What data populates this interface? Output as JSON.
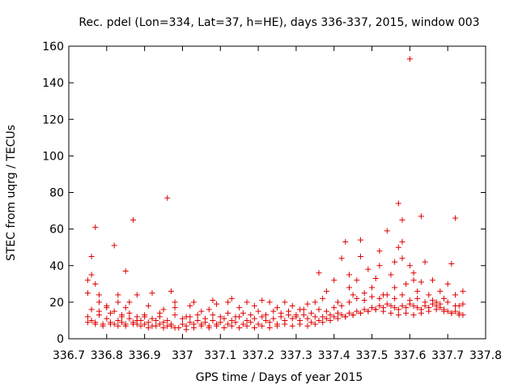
{
  "chart_data": {
    "type": "scatter",
    "title": "Rec. pdel (Lon=334, Lat=37, h=HE), days 336-337, 2015, window 003",
    "xlabel": "GPS time / Days of year 2015",
    "ylabel": "STEC from uqrg / TECUs",
    "xlim": [
      336.7,
      337.8
    ],
    "ylim": [
      0,
      160
    ],
    "x_ticks": [
      336.7,
      336.8,
      336.9,
      337.0,
      337.1,
      337.2,
      337.3,
      337.4,
      337.5,
      337.6,
      337.7,
      337.8
    ],
    "x_tick_labels": [
      "336.7",
      "336.8",
      "336.9",
      "337",
      "337.1",
      "337.2",
      "337.3",
      "337.4",
      "337.5",
      "337.6",
      "337.7",
      "337.8"
    ],
    "y_ticks": [
      0,
      20,
      40,
      60,
      80,
      100,
      120,
      140,
      160
    ],
    "y_tick_labels": [
      "0",
      "20",
      "40",
      "60",
      "80",
      "100",
      "120",
      "140",
      "160"
    ],
    "grid": false,
    "marker": "plus",
    "color": "#e00000",
    "series": [
      {
        "points": [
          [
            336.75,
            32
          ],
          [
            336.75,
            25
          ],
          [
            336.76,
            35
          ],
          [
            336.76,
            45
          ],
          [
            336.77,
            30
          ],
          [
            336.77,
            61
          ],
          [
            336.78,
            20
          ],
          [
            336.78,
            24
          ],
          [
            336.8,
            18
          ],
          [
            336.81,
            14
          ],
          [
            336.82,
            51
          ],
          [
            336.83,
            20
          ],
          [
            336.83,
            24
          ],
          [
            336.84,
            13
          ],
          [
            336.85,
            37
          ],
          [
            336.85,
            17
          ],
          [
            336.86,
            20
          ],
          [
            336.87,
            65
          ],
          [
            336.88,
            24
          ],
          [
            336.88,
            12
          ],
          [
            336.9,
            12
          ],
          [
            336.91,
            18
          ],
          [
            336.92,
            25
          ],
          [
            336.94,
            14
          ],
          [
            336.95,
            16
          ],
          [
            336.96,
            77
          ],
          [
            336.97,
            26
          ],
          [
            336.98,
            20
          ],
          [
            336.98,
            17
          ],
          [
            337.01,
            12
          ],
          [
            337.02,
            18
          ],
          [
            337.03,
            20
          ],
          [
            337.05,
            15
          ],
          [
            337.07,
            16
          ],
          [
            337.08,
            21
          ],
          [
            337.09,
            19
          ],
          [
            337.12,
            20
          ],
          [
            337.13,
            22
          ],
          [
            337.15,
            17
          ],
          [
            337.17,
            20
          ],
          [
            337.19,
            18
          ],
          [
            337.21,
            21
          ],
          [
            337.23,
            20
          ],
          [
            337.25,
            17
          ],
          [
            337.27,
            20
          ],
          [
            337.29,
            18
          ],
          [
            337.31,
            16
          ],
          [
            337.33,
            19
          ],
          [
            337.35,
            20
          ],
          [
            337.36,
            36
          ],
          [
            337.37,
            22
          ],
          [
            337.38,
            26
          ],
          [
            337.4,
            32
          ],
          [
            337.41,
            20
          ],
          [
            337.42,
            44
          ],
          [
            337.43,
            53
          ],
          [
            337.44,
            35
          ],
          [
            337.44,
            28
          ],
          [
            337.45,
            24
          ],
          [
            337.46,
            32
          ],
          [
            337.47,
            54
          ],
          [
            337.47,
            45
          ],
          [
            337.48,
            25
          ],
          [
            337.49,
            38
          ],
          [
            337.5,
            28
          ],
          [
            337.51,
            33
          ],
          [
            337.52,
            40
          ],
          [
            337.52,
            48
          ],
          [
            337.53,
            24
          ],
          [
            337.54,
            59
          ],
          [
            337.55,
            35
          ],
          [
            337.56,
            42
          ],
          [
            337.56,
            28
          ],
          [
            337.57,
            74
          ],
          [
            337.57,
            50
          ],
          [
            337.58,
            44
          ],
          [
            337.58,
            65
          ],
          [
            337.58,
            53
          ],
          [
            337.59,
            30
          ],
          [
            337.6,
            153
          ],
          [
            337.6,
            40
          ],
          [
            337.61,
            36
          ],
          [
            337.61,
            32
          ],
          [
            337.62,
            26
          ],
          [
            337.63,
            67
          ],
          [
            337.63,
            31
          ],
          [
            337.64,
            42
          ],
          [
            337.65,
            24
          ],
          [
            337.66,
            32
          ],
          [
            337.67,
            20
          ],
          [
            337.68,
            26
          ],
          [
            337.69,
            22
          ],
          [
            337.7,
            30
          ],
          [
            337.71,
            41
          ],
          [
            337.72,
            24
          ],
          [
            337.72,
            66
          ],
          [
            337.73,
            18
          ],
          [
            337.74,
            26
          ],
          [
            336.75,
            12
          ],
          [
            336.76,
            10
          ],
          [
            336.77,
            9
          ],
          [
            336.78,
            13
          ],
          [
            336.79,
            8
          ],
          [
            336.8,
            11
          ],
          [
            336.81,
            9
          ],
          [
            336.82,
            8
          ],
          [
            336.83,
            10
          ],
          [
            336.84,
            9
          ],
          [
            336.85,
            8
          ],
          [
            336.86,
            11
          ],
          [
            336.87,
            9
          ],
          [
            336.88,
            8
          ],
          [
            336.89,
            10
          ],
          [
            336.9,
            8
          ],
          [
            336.91,
            9
          ],
          [
            336.92,
            7
          ],
          [
            336.93,
            10
          ],
          [
            336.94,
            8
          ],
          [
            336.95,
            9
          ],
          [
            336.96,
            7
          ],
          [
            336.97,
            8
          ],
          [
            336.98,
            6
          ],
          [
            337.0,
            8
          ],
          [
            337.01,
            7
          ],
          [
            337.02,
            9
          ],
          [
            337.03,
            8
          ],
          [
            337.04,
            10
          ],
          [
            337.05,
            8
          ],
          [
            337.06,
            9
          ],
          [
            337.07,
            7
          ],
          [
            337.08,
            10
          ],
          [
            337.09,
            8
          ],
          [
            337.1,
            9
          ],
          [
            337.11,
            11
          ],
          [
            337.12,
            8
          ],
          [
            337.13,
            10
          ],
          [
            337.14,
            9
          ],
          [
            337.15,
            12
          ],
          [
            337.16,
            8
          ],
          [
            337.17,
            10
          ],
          [
            337.18,
            9
          ],
          [
            337.19,
            11
          ],
          [
            337.2,
            8
          ],
          [
            337.21,
            12
          ],
          [
            337.22,
            10
          ],
          [
            337.23,
            9
          ],
          [
            337.24,
            11
          ],
          [
            337.25,
            8
          ],
          [
            337.26,
            12
          ],
          [
            337.27,
            10
          ],
          [
            337.28,
            13
          ],
          [
            337.29,
            11
          ],
          [
            337.3,
            12
          ],
          [
            337.31,
            10
          ],
          [
            337.32,
            13
          ],
          [
            337.33,
            11
          ],
          [
            337.34,
            9
          ],
          [
            337.35,
            12
          ],
          [
            337.36,
            10
          ],
          [
            337.37,
            12
          ],
          [
            337.38,
            11
          ],
          [
            337.39,
            13
          ],
          [
            337.4,
            12
          ],
          [
            337.41,
            14
          ],
          [
            337.42,
            13
          ],
          [
            337.43,
            12
          ],
          [
            337.44,
            14
          ],
          [
            337.45,
            13
          ],
          [
            337.46,
            15
          ],
          [
            337.47,
            14
          ],
          [
            337.48,
            16
          ],
          [
            337.49,
            15
          ],
          [
            337.5,
            17
          ],
          [
            337.51,
            16
          ],
          [
            337.52,
            18
          ],
          [
            337.53,
            17
          ],
          [
            337.54,
            19
          ],
          [
            337.55,
            18
          ],
          [
            337.56,
            17
          ],
          [
            337.57,
            16
          ],
          [
            337.58,
            18
          ],
          [
            337.59,
            17
          ],
          [
            337.6,
            19
          ],
          [
            337.61,
            18
          ],
          [
            337.62,
            17
          ],
          [
            337.63,
            16
          ],
          [
            337.64,
            18
          ],
          [
            337.65,
            17
          ],
          [
            337.66,
            19
          ],
          [
            337.67,
            18
          ],
          [
            337.68,
            17
          ],
          [
            337.69,
            16
          ],
          [
            337.7,
            15
          ],
          [
            337.71,
            14
          ],
          [
            337.72,
            15
          ],
          [
            337.73,
            14
          ],
          [
            337.74,
            13
          ],
          [
            336.76,
            16
          ],
          [
            336.78,
            15
          ],
          [
            336.8,
            17
          ],
          [
            336.82,
            15
          ],
          [
            336.84,
            12
          ],
          [
            336.86,
            14
          ],
          [
            336.88,
            10
          ],
          [
            336.9,
            13
          ],
          [
            336.92,
            11
          ],
          [
            336.94,
            12
          ],
          [
            336.96,
            10
          ],
          [
            336.98,
            13
          ],
          [
            337.0,
            11
          ],
          [
            337.02,
            12
          ],
          [
            337.04,
            13
          ],
          [
            337.06,
            11
          ],
          [
            337.08,
            13
          ],
          [
            337.1,
            12
          ],
          [
            337.12,
            14
          ],
          [
            337.14,
            12
          ],
          [
            337.16,
            14
          ],
          [
            337.18,
            13
          ],
          [
            337.2,
            15
          ],
          [
            337.22,
            13
          ],
          [
            337.24,
            15
          ],
          [
            337.26,
            14
          ],
          [
            337.28,
            15
          ],
          [
            337.3,
            13
          ],
          [
            337.32,
            16
          ],
          [
            337.34,
            14
          ],
          [
            337.36,
            16
          ],
          [
            337.38,
            15
          ],
          [
            337.4,
            17
          ],
          [
            337.42,
            18
          ],
          [
            337.44,
            20
          ],
          [
            337.46,
            22
          ],
          [
            337.48,
            21
          ],
          [
            337.5,
            23
          ],
          [
            337.52,
            22
          ],
          [
            337.54,
            24
          ],
          [
            337.56,
            22
          ],
          [
            337.58,
            24
          ],
          [
            337.6,
            21
          ],
          [
            337.62,
            22
          ],
          [
            337.64,
            20
          ],
          [
            337.66,
            21
          ],
          [
            337.68,
            19
          ],
          [
            337.7,
            20
          ],
          [
            337.72,
            18
          ],
          [
            337.74,
            19
          ],
          [
            336.75,
            9
          ],
          [
            336.77,
            8
          ],
          [
            336.79,
            7
          ],
          [
            336.81,
            8
          ],
          [
            336.83,
            7
          ],
          [
            336.85,
            7
          ],
          [
            336.87,
            8
          ],
          [
            336.89,
            7
          ],
          [
            336.91,
            6
          ],
          [
            336.93,
            7
          ],
          [
            336.95,
            6
          ],
          [
            336.97,
            7
          ],
          [
            336.99,
            6
          ],
          [
            337.01,
            5
          ],
          [
            337.03,
            6
          ],
          [
            337.05,
            7
          ],
          [
            337.07,
            6
          ],
          [
            337.09,
            7
          ],
          [
            337.11,
            6
          ],
          [
            337.13,
            7
          ],
          [
            337.15,
            6
          ],
          [
            337.17,
            7
          ],
          [
            337.19,
            6
          ],
          [
            337.21,
            7
          ],
          [
            337.23,
            6
          ],
          [
            337.25,
            7
          ],
          [
            337.27,
            8
          ],
          [
            337.29,
            7
          ],
          [
            337.31,
            8
          ],
          [
            337.33,
            7
          ],
          [
            337.35,
            8
          ],
          [
            337.37,
            9
          ],
          [
            337.39,
            10
          ],
          [
            337.41,
            11
          ],
          [
            337.43,
            12
          ],
          [
            337.45,
            13
          ],
          [
            337.47,
            14
          ],
          [
            337.49,
            15
          ],
          [
            337.51,
            16
          ],
          [
            337.53,
            15
          ],
          [
            337.55,
            14
          ],
          [
            337.57,
            13
          ],
          [
            337.59,
            14
          ],
          [
            337.61,
            13
          ],
          [
            337.63,
            14
          ],
          [
            337.65,
            15
          ],
          [
            337.67,
            16
          ],
          [
            337.69,
            15
          ],
          [
            337.71,
            14
          ],
          [
            337.73,
            13
          ]
        ]
      }
    ]
  }
}
